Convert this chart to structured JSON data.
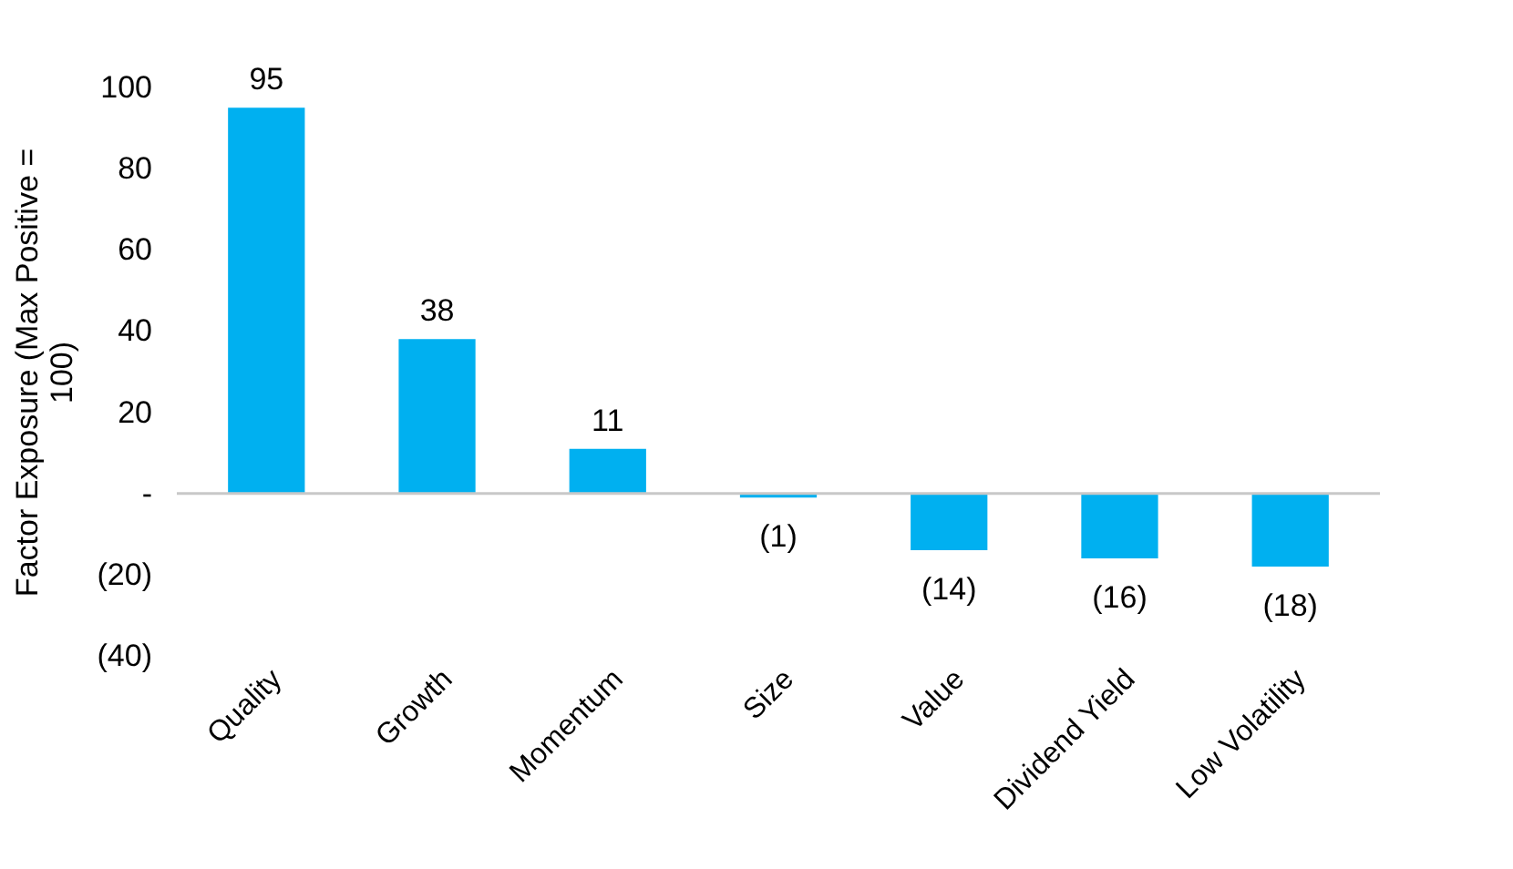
{
  "chart_data": {
    "type": "bar",
    "ylabel": "Factor Exposure (Max Positive = 100)",
    "categories": [
      "Quality",
      "Growth",
      "Momentum",
      "Size",
      "Value",
      "Dividend Yield",
      "Low Volatility"
    ],
    "values": [
      95,
      38,
      11,
      -1,
      -14,
      -16,
      -18
    ],
    "value_labels": [
      "95",
      "38",
      "11",
      "(1)",
      "(14)",
      "(16)",
      "(18)"
    ],
    "color": "#00b0f0",
    "ylim": [
      -40,
      100
    ],
    "yticks": [
      100,
      80,
      60,
      40,
      20,
      {
        "value": 0,
        "label": "-"
      },
      {
        "value": -20,
        "label": "(20)"
      },
      {
        "value": -40,
        "label": "(40)"
      }
    ],
    "ref_lines": [
      {
        "axis": "y",
        "value": 0,
        "color": "#c8c8c8"
      }
    ],
    "grid": false
  }
}
